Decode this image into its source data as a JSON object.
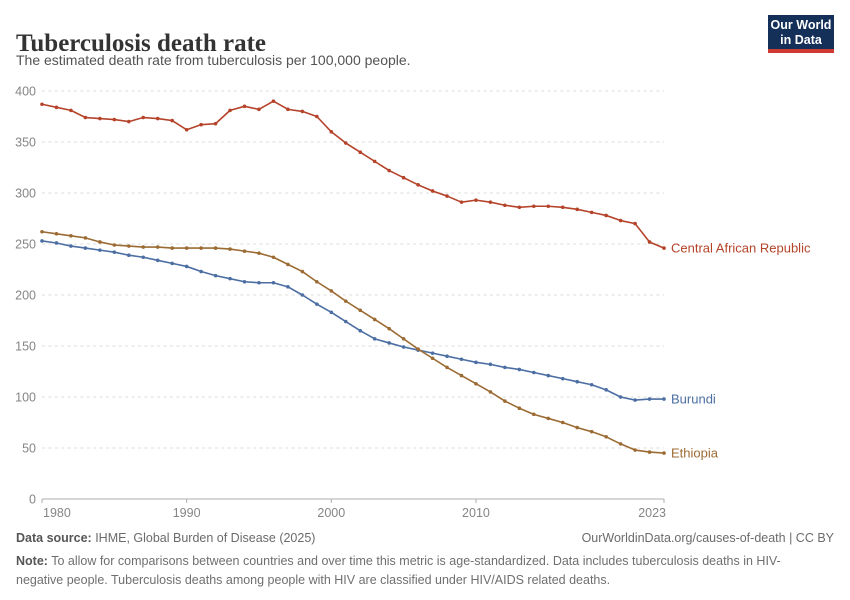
{
  "header": {
    "title": "Tuberculosis death rate",
    "subtitle": "The estimated death rate from tuberculosis per 100,000 people."
  },
  "logo": {
    "line1": "Our World",
    "line2": "in Data",
    "bg_color": "#143059",
    "stripe_color": "#CE3B32"
  },
  "chart_data": {
    "type": "line",
    "title": "Tuberculosis death rate",
    "subtitle": "The estimated death rate from tuberculosis per 100,000 people.",
    "xlabel": "",
    "ylabel": "",
    "xlim": [
      1980,
      2023
    ],
    "ylim": [
      0,
      400
    ],
    "xticks": [
      1980,
      1990,
      2000,
      2010,
      2023
    ],
    "yticks": [
      0,
      50,
      100,
      150,
      200,
      250,
      300,
      350,
      400
    ],
    "grid": "horizontal dashed",
    "legend_position": "end-of-line labels",
    "x": [
      1980,
      1981,
      1982,
      1983,
      1984,
      1985,
      1986,
      1987,
      1988,
      1989,
      1990,
      1991,
      1992,
      1993,
      1994,
      1995,
      1996,
      1997,
      1998,
      1999,
      2000,
      2001,
      2002,
      2003,
      2004,
      2005,
      2006,
      2007,
      2008,
      2009,
      2010,
      2011,
      2012,
      2013,
      2014,
      2015,
      2016,
      2017,
      2018,
      2019,
      2020,
      2021,
      2022,
      2023
    ],
    "series": [
      {
        "name": "Central African Republic",
        "color": "#B5432A",
        "values": [
          387,
          384,
          381,
          374,
          373,
          372,
          370,
          374,
          373,
          371,
          362,
          367,
          368,
          381,
          385,
          382,
          390,
          382,
          380,
          375,
          360,
          349,
          340,
          331,
          322,
          315,
          308,
          302,
          297,
          291,
          293,
          291,
          288,
          286,
          287,
          287,
          286,
          284,
          281,
          278,
          273,
          270,
          252,
          246
        ]
      },
      {
        "name": "Burundi",
        "color": "#4C6EA3",
        "values": [
          253,
          251,
          248,
          246,
          244,
          242,
          239,
          237,
          234,
          231,
          228,
          223,
          219,
          216,
          213,
          212,
          212,
          208,
          200,
          191,
          183,
          174,
          165,
          157,
          153,
          149,
          146,
          143,
          140,
          137,
          134,
          132,
          129,
          127,
          124,
          121,
          118,
          115,
          112,
          107,
          100,
          97,
          98,
          98
        ]
      },
      {
        "name": "Ethiopia",
        "color": "#9C6B33",
        "values": [
          262,
          260,
          258,
          256,
          252,
          249,
          248,
          247,
          247,
          246,
          246,
          246,
          246,
          245,
          243,
          241,
          237,
          230,
          223,
          213,
          204,
          194,
          185,
          176,
          167,
          157,
          147,
          138,
          129,
          121,
          113,
          105,
          96,
          89,
          83,
          79,
          75,
          70,
          66,
          61,
          54,
          48,
          46,
          45
        ]
      }
    ]
  },
  "footer": {
    "source_label": "Data source:",
    "source_text": " IHME, Global Burden of Disease (2025)",
    "attribution": "OurWorldinData.org/causes-of-death | CC BY",
    "note_label": "Note:",
    "note_text": " To allow for comparisons between countries and over time this metric is age-standardized. Data includes tuberculosis deaths in HIV-negative people. Tuberculosis deaths among people with HIV are classified under HIV/AIDS related deaths."
  }
}
